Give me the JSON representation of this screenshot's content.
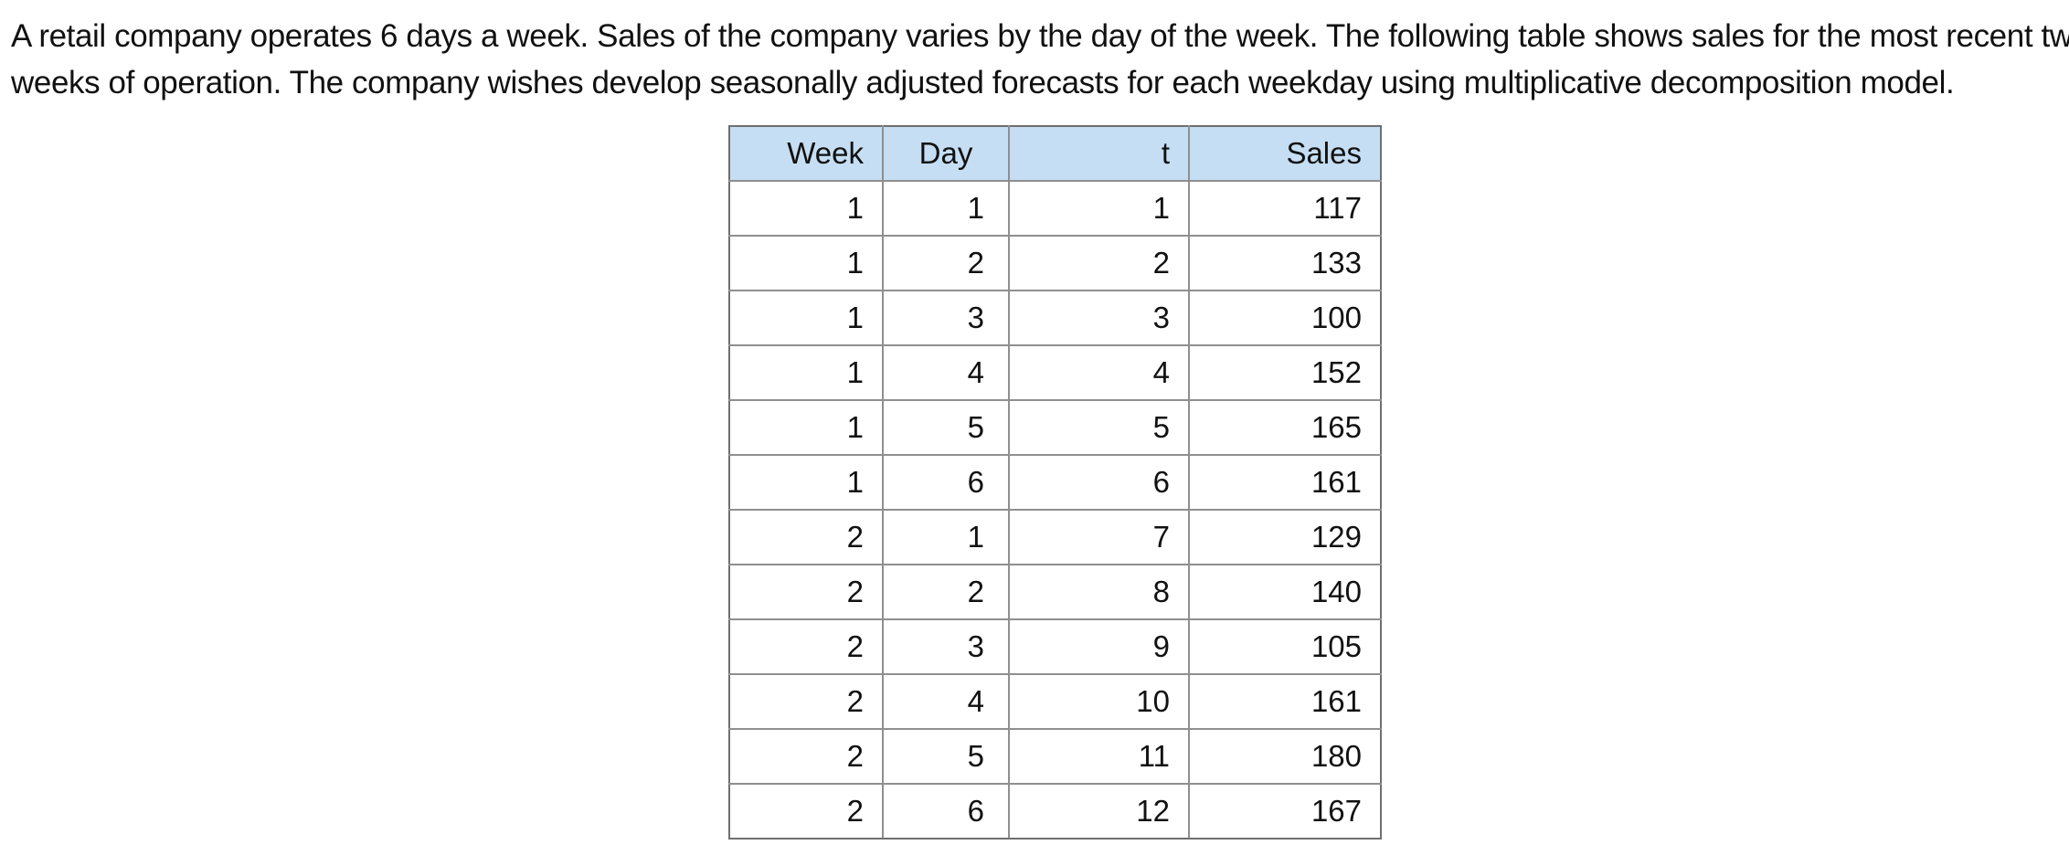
{
  "problem": {
    "line1": "A retail company operates 6 days a week.  Sales of the company varies by the day of the week.  The following table shows sales for the most recent two",
    "line2": "weeks of operation.  The company wishes develop seasonally adjusted forecasts for each weekday using multiplicative decomposition model."
  },
  "table": {
    "headers": [
      "Week",
      "Day",
      "t",
      "Sales"
    ],
    "rows": [
      [
        "1",
        "1",
        "1",
        "117"
      ],
      [
        "1",
        "2",
        "2",
        "133"
      ],
      [
        "1",
        "3",
        "3",
        "100"
      ],
      [
        "1",
        "4",
        "4",
        "152"
      ],
      [
        "1",
        "5",
        "5",
        "165"
      ],
      [
        "1",
        "6",
        "6",
        "161"
      ],
      [
        "2",
        "1",
        "7",
        "129"
      ],
      [
        "2",
        "2",
        "8",
        "140"
      ],
      [
        "2",
        "3",
        "9",
        "105"
      ],
      [
        "2",
        "4",
        "10",
        "161"
      ],
      [
        "2",
        "5",
        "11",
        "180"
      ],
      [
        "2",
        "6",
        "12",
        "167"
      ]
    ]
  },
  "colors": {
    "header_background": "#c5def3",
    "border": "#8f8f8f"
  }
}
